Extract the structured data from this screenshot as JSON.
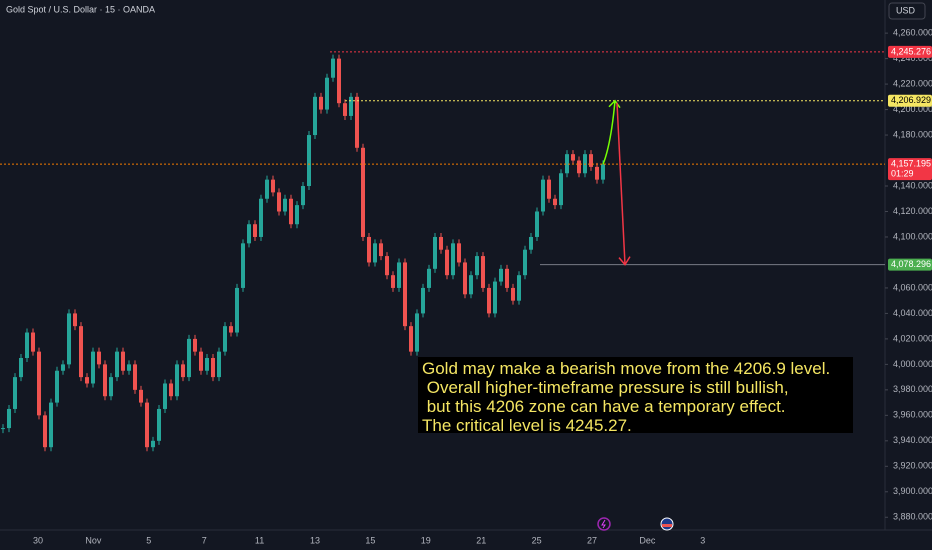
{
  "chart_data": {
    "type": "candlestick",
    "title": "Gold Spot / U.S. Dollar · 15 · OANDA",
    "currency_button": "USD",
    "up_color": "#26a69a",
    "down_color": "#ef5350",
    "series": [
      {
        "name": "XAUUSD",
        "values": [
          3950,
          3965,
          3990,
          4005,
          4025,
          4010,
          3960,
          3935,
          3970,
          3995,
          4000,
          4040,
          4030,
          3990,
          3985,
          4010,
          4000,
          3975,
          3990,
          4010,
          3995,
          4000,
          3980,
          3970,
          3935,
          3940,
          3965,
          3985,
          3975,
          4000,
          3990,
          4020,
          4010,
          3995,
          4005,
          3990,
          4010,
          4030,
          4025,
          4060,
          4095,
          4110,
          4100,
          4130,
          4145,
          4135,
          4120,
          4130,
          4110,
          4125,
          4140,
          4180,
          4210,
          4200,
          4225,
          4240,
          4205,
          4195,
          4210,
          4170,
          4100,
          4080,
          4095,
          4085,
          4070,
          4060,
          4080,
          4030,
          4010,
          4040,
          4060,
          4075,
          4100,
          4090,
          4070,
          4095,
          4080,
          4055,
          4070,
          4085,
          4060,
          4040,
          4065,
          4075,
          4060,
          4050,
          4070,
          4090,
          4100,
          4120,
          4145,
          4130,
          4125,
          4150,
          4165,
          4160,
          4150,
          4165,
          4155,
          4145,
          4157
        ]
      }
    ],
    "ylim": [
      3870,
      4286
    ],
    "yticks": [
      {
        "value": 4260,
        "label": "4,260.000"
      },
      {
        "value": 4240,
        "label": "4,240.000"
      },
      {
        "value": 4220,
        "label": "4,220.000"
      },
      {
        "value": 4200,
        "label": "4,200.000"
      },
      {
        "value": 4180,
        "label": "4,180.000"
      },
      {
        "value": 4140,
        "label": "4,140.000"
      },
      {
        "value": 4120,
        "label": "4,120.000"
      },
      {
        "value": 4100,
        "label": "4,100.000"
      },
      {
        "value": 4060,
        "label": "4,060.000"
      },
      {
        "value": 4040,
        "label": "4,040.000"
      },
      {
        "value": 4020,
        "label": "4,020.000"
      },
      {
        "value": 4000,
        "label": "4,000.000"
      },
      {
        "value": 3980,
        "label": "3,980.000"
      },
      {
        "value": 3960,
        "label": "3,960.000"
      },
      {
        "value": 3940,
        "label": "3,940.000"
      },
      {
        "value": 3920,
        "label": "3,920.000"
      },
      {
        "value": 3900,
        "label": "3,900.000"
      },
      {
        "value": 3880,
        "label": "3,880.000"
      }
    ],
    "xticks": [
      "30",
      "Nov",
      "5",
      "7",
      "11",
      "13",
      "15",
      "19",
      "21",
      "25",
      "27",
      "Dec",
      "3"
    ],
    "levels": [
      {
        "value": 4245.276,
        "label": "4,245.276",
        "color": "#f23645"
      },
      {
        "value": 4206.929,
        "label": "4,206.929",
        "color": "#f5e663"
      },
      {
        "value": 4157.195,
        "label": "4,157.195",
        "color": "#f23645",
        "countdown": "01:29"
      },
      {
        "value": 4078.296,
        "label": "4,078.296",
        "color": "#4caf50"
      }
    ],
    "annotation": [
      "Gold may make a bearish move from the 4206.9 level.",
      " Overall higher-timeframe pressure is still bullish,",
      " but this 4206 zone can have a temporary effect.",
      "The critical level is 4245.27."
    ]
  }
}
